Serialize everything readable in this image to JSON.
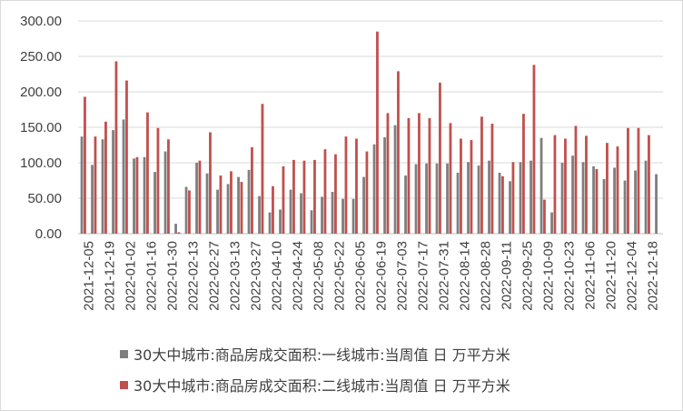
{
  "chart_data": {
    "type": "bar",
    "ylim": [
      0,
      300
    ],
    "yticks": [
      "0.00",
      "50.00",
      "100.00",
      "150.00",
      "200.00",
      "250.00",
      "300.00"
    ],
    "xtick_labels": [
      "2021-12-05",
      "2021-12-19",
      "2022-01-02",
      "2022-01-16",
      "2022-01-30",
      "2022-02-13",
      "2022-02-27",
      "2022-03-13",
      "2022-03-27",
      "2022-04-10",
      "2022-04-24",
      "2022-05-08",
      "2022-05-22",
      "2022-06-05",
      "2022-06-19",
      "2022-07-03",
      "2022-07-17",
      "2022-07-31",
      "2022-08-14",
      "2022-08-28",
      "2022-09-11",
      "2022-09-25",
      "2022-10-09",
      "2022-10-23",
      "2022-11-06",
      "2022-11-20",
      "2022-12-04",
      "2022-12-18"
    ],
    "series": [
      {
        "name": "30大中城市:商品房成交面积:一线城市:当周值 日 万平方米",
        "color": "#7f7f7f",
        "values": [
          137,
          97,
          133,
          146,
          161,
          106,
          108,
          87,
          116,
          14,
          66,
          100,
          85,
          62,
          70,
          80,
          90,
          53,
          30,
          34,
          62,
          57,
          33,
          52,
          59,
          49,
          49,
          80,
          126,
          136,
          153,
          82,
          98,
          99,
          99,
          99,
          86,
          101,
          96,
          103,
          86,
          74,
          101,
          103,
          135,
          30,
          100,
          110,
          101,
          95,
          77,
          93,
          75,
          89,
          103,
          84
        ]
      },
      {
        "name": "30大中城市:商品房成交面积:二线城市:当周值 日 万平方米",
        "color": "#c0504d",
        "values": [
          193,
          137,
          158,
          243,
          216,
          108,
          171,
          149,
          133,
          2,
          61,
          103,
          143,
          82,
          88,
          73,
          122,
          183,
          67,
          95,
          104,
          103,
          104,
          119,
          112,
          137,
          134,
          116,
          285,
          170,
          229,
          163,
          170,
          163,
          213,
          156,
          134,
          132,
          165,
          155,
          81,
          101,
          169,
          238,
          48,
          139,
          134,
          152,
          138,
          91,
          128,
          123,
          149,
          149,
          139,
          0
        ]
      }
    ]
  }
}
